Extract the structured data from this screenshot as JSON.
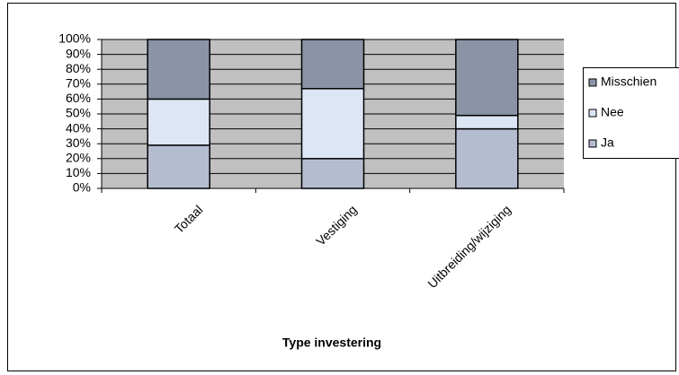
{
  "chart_data": {
    "type": "stacked_bar",
    "x_label": "Type investering",
    "categories": [
      "Totaal",
      "Vestiging",
      "Uitbreiding/wijziging"
    ],
    "series": [
      {
        "name": "Ja",
        "color": "#b4bdd0",
        "values": [
          29,
          20,
          40
        ]
      },
      {
        "name": "Nee",
        "color": "#dce6f4",
        "values": [
          31,
          47,
          9
        ]
      },
      {
        "name": "Misschien",
        "color": "#8a94a6",
        "values": [
          40,
          33,
          51
        ]
      }
    ],
    "ylim": [
      0,
      100
    ],
    "yticks": [
      {
        "value": 0,
        "label": "0%"
      },
      {
        "value": 10,
        "label": "10%"
      },
      {
        "value": 20,
        "label": "20%"
      },
      {
        "value": 30,
        "label": "30%"
      },
      {
        "value": 40,
        "label": "40%"
      },
      {
        "value": 50,
        "label": "50%"
      },
      {
        "value": 60,
        "label": "60%"
      },
      {
        "value": 70,
        "label": "70%"
      },
      {
        "value": 80,
        "label": "80%"
      },
      {
        "value": 90,
        "label": "90%"
      },
      {
        "value": 100,
        "label": "100%"
      }
    ],
    "grid": true,
    "plot_background": "#c0c0c0",
    "legend": "right"
  }
}
